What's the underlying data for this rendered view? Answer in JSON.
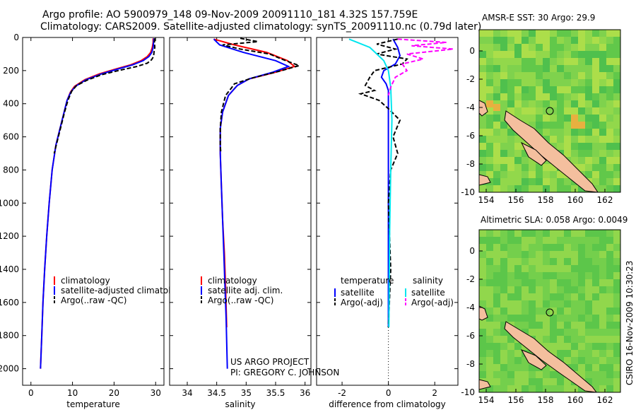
{
  "header": {
    "line1": "Argo profile: AO 5900979_148 09-Nov-2009 20091110_181 4.32S 157.759E",
    "line2": "Climatology: CARS2009. Satellite-adjusted climatology: synTS_20091110.nc (0.79d later)"
  },
  "side_text": "CSIRO 16-Nov-2009 10:30:23",
  "project_text": {
    "line1": "US ARGO PROJECT",
    "line2": "PI: GREGORY C. JOHNSON"
  },
  "colors": {
    "climatology": "#ff0000",
    "satellite": "#0000ff",
    "argo": "#000000",
    "sal_satellite": "#00e5ee",
    "sal_argo": "#ff00ff",
    "land": "#f4bf9e"
  },
  "chart_data": [
    {
      "type": "line",
      "xlabel": "temperature",
      "xlim": [
        -2,
        32
      ],
      "ylim": [
        2100,
        0
      ],
      "xticks": [
        0,
        10,
        20,
        30
      ],
      "yticks": [
        0,
        200,
        400,
        600,
        800,
        1000,
        1200,
        1400,
        1600,
        1800,
        2000
      ],
      "legend": {
        "placement": "bottom-left",
        "entries": [
          "climatology",
          "satellite-adjusted climatology",
          "Argo(..raw -QC)"
        ]
      },
      "series": [
        {
          "name": "climatology",
          "color": "#ff0000",
          "dash": "",
          "points": [
            [
              29.4,
              5
            ],
            [
              29.4,
              30
            ],
            [
              29.2,
              60
            ],
            [
              28.8,
              90
            ],
            [
              28,
              115
            ],
            [
              26.5,
              140
            ],
            [
              24,
              165
            ],
            [
              20.5,
              190
            ],
            [
              16.5,
              220
            ],
            [
              13,
              255
            ],
            [
              10.5,
              295
            ],
            [
              9.5,
              330
            ],
            [
              8.7,
              380
            ],
            [
              8,
              450
            ],
            [
              7,
              550
            ],
            [
              6,
              650
            ],
            [
              5.1,
              800
            ],
            [
              4.4,
              1000
            ],
            [
              3.8,
              1200
            ],
            [
              3.3,
              1400
            ],
            [
              2.9,
              1600
            ],
            [
              2.6,
              1800
            ],
            [
              2.3,
              2000
            ]
          ]
        },
        {
          "name": "satellite-adjusted climatology",
          "color": "#0000ff",
          "dash": "",
          "points": [
            [
              29.6,
              5
            ],
            [
              29.5,
              30
            ],
            [
              29.4,
              60
            ],
            [
              29.1,
              90
            ],
            [
              28.4,
              115
            ],
            [
              27,
              140
            ],
            [
              24.5,
              165
            ],
            [
              21,
              190
            ],
            [
              17,
              220
            ],
            [
              13.3,
              255
            ],
            [
              10.7,
              295
            ],
            [
              9.6,
              330
            ],
            [
              8.7,
              380
            ],
            [
              8,
              450
            ],
            [
              7,
              550
            ],
            [
              6,
              650
            ],
            [
              5.1,
              800
            ],
            [
              4.4,
              1000
            ],
            [
              3.8,
              1200
            ],
            [
              3.3,
              1400
            ],
            [
              2.9,
              1600
            ],
            [
              2.6,
              1800
            ],
            [
              2.3,
              2000
            ]
          ]
        },
        {
          "name": "Argo(..raw -QC)",
          "color": "#000000",
          "dash": "6,3",
          "points": [
            [
              29.8,
              5
            ],
            [
              29.7,
              30
            ],
            [
              29.8,
              60
            ],
            [
              29.6,
              90
            ],
            [
              29.5,
              115
            ],
            [
              29,
              135
            ],
            [
              28,
              155
            ],
            [
              25.5,
              175
            ],
            [
              21,
              200
            ],
            [
              17,
              225
            ],
            [
              13.5,
              258
            ],
            [
              11,
              290
            ],
            [
              9.8,
              325
            ],
            [
              8.9,
              380
            ],
            [
              8.1,
              450
            ],
            [
              7.1,
              550
            ],
            [
              6.1,
              650
            ],
            [
              5.6,
              700
            ]
          ]
        }
      ]
    },
    {
      "type": "line",
      "xlabel": "salinity",
      "xlim": [
        33.7,
        36.1
      ],
      "ylim": [
        2100,
        0
      ],
      "xticks": [
        34,
        34.5,
        35,
        35.5,
        36
      ],
      "legend": {
        "placement": "bottom-left",
        "entries": [
          "climatology",
          "satellite adj. clim.",
          "Argo(..raw -QC)"
        ]
      },
      "series": [
        {
          "name": "climatology",
          "color": "#ff0000",
          "dash": "",
          "points": [
            [
              34.45,
              10
            ],
            [
              34.8,
              45
            ],
            [
              35.35,
              90
            ],
            [
              35.7,
              140
            ],
            [
              35.82,
              175
            ],
            [
              35.5,
              210
            ],
            [
              35.05,
              250
            ],
            [
              34.85,
              290
            ],
            [
              34.7,
              350
            ],
            [
              34.6,
              450
            ],
            [
              34.56,
              550
            ],
            [
              34.56,
              700
            ],
            [
              34.58,
              900
            ],
            [
              34.6,
              1100
            ],
            [
              34.63,
              1300
            ],
            [
              34.65,
              1500
            ],
            [
              34.67,
              1750
            ]
          ]
        },
        {
          "name": "satellite adj. clim.",
          "color": "#0000ff",
          "dash": "",
          "points": [
            [
              34.45,
              10
            ],
            [
              34.55,
              45
            ],
            [
              34.95,
              90
            ],
            [
              35.5,
              140
            ],
            [
              35.72,
              175
            ],
            [
              35.45,
              210
            ],
            [
              35.05,
              250
            ],
            [
              34.85,
              290
            ],
            [
              34.7,
              350
            ],
            [
              34.6,
              450
            ],
            [
              34.56,
              550
            ],
            [
              34.56,
              700
            ],
            [
              34.58,
              900
            ],
            [
              34.6,
              1100
            ],
            [
              34.62,
              1300
            ],
            [
              34.64,
              1500
            ],
            [
              34.66,
              1700
            ],
            [
              34.68,
              2000
            ]
          ]
        },
        {
          "name": "Argo(..raw -QC)",
          "color": "#000000",
          "dash": "6,3",
          "points": [
            [
              34.9,
              5
            ],
            [
              35.2,
              25
            ],
            [
              34.6,
              45
            ],
            [
              34.9,
              70
            ],
            [
              35.4,
              100
            ],
            [
              35.6,
              130
            ],
            [
              35.9,
              170
            ],
            [
              35.55,
              205
            ],
            [
              35.1,
              245
            ],
            [
              34.8,
              280
            ],
            [
              34.75,
              305
            ],
            [
              34.65,
              350
            ],
            [
              34.58,
              450
            ],
            [
              34.56,
              550
            ],
            [
              34.56,
              650
            ],
            [
              34.57,
              700
            ]
          ]
        }
      ]
    },
    {
      "type": "line",
      "xlabel": "difference from climatology",
      "xlim": [
        -3.1,
        3.0
      ],
      "ylim": [
        2100,
        0
      ],
      "xticks": [
        -2,
        0,
        2
      ],
      "legend": {
        "placement": "bottom",
        "headers": [
          "temperature",
          "salinity"
        ],
        "entries": [
          "satellite",
          "Argo(-adj)",
          "satellite",
          "Argo(-adj)"
        ]
      },
      "series": [
        {
          "name": "temperature satellite",
          "color": "#0000ff",
          "dash": "",
          "points": [
            [
              0.2,
              10
            ],
            [
              0.4,
              60
            ],
            [
              0.5,
              110
            ],
            [
              0.3,
              160
            ],
            [
              -0.2,
              200
            ],
            [
              -0.3,
              240
            ],
            [
              -0.1,
              280
            ],
            [
              0,
              320
            ],
            [
              0,
              450
            ],
            [
              0,
              700
            ],
            [
              0,
              1000
            ],
            [
              0,
              1400
            ],
            [
              0,
              1750
            ]
          ]
        },
        {
          "name": "temperature Argo(-adj)",
          "color": "#000000",
          "dash": "6,3",
          "points": [
            [
              0.4,
              10
            ],
            [
              -0.5,
              40
            ],
            [
              0.3,
              70
            ],
            [
              -0.5,
              100
            ],
            [
              0.8,
              130
            ],
            [
              0.6,
              160
            ],
            [
              -0.6,
              200
            ],
            [
              -0.8,
              240
            ],
            [
              -1,
              290
            ],
            [
              -0.6,
              320
            ],
            [
              -1.2,
              340
            ],
            [
              -0.4,
              380
            ],
            [
              0,
              430
            ],
            [
              0.5,
              500
            ],
            [
              0.2,
              600
            ],
            [
              0.4,
              700
            ],
            [
              0.1,
              800
            ],
            [
              0,
              1000
            ],
            [
              0.1,
              1400
            ],
            [
              0,
              1750
            ]
          ]
        },
        {
          "name": "salinity satellite",
          "color": "#00e5ee",
          "dash": "",
          "points": [
            [
              -1.7,
              10
            ],
            [
              -0.8,
              60
            ],
            [
              -0.5,
              100
            ],
            [
              -0.2,
              140
            ],
            [
              0,
              200
            ],
            [
              0.1,
              300
            ],
            [
              0.15,
              500
            ],
            [
              0.1,
              800
            ],
            [
              0.05,
              1200
            ],
            [
              0.02,
              1750
            ]
          ]
        },
        {
          "name": "salinity Argo(-adj)",
          "color": "#ff00ff",
          "dash": "6,3",
          "points": [
            [
              0.4,
              10
            ],
            [
              2.5,
              30
            ],
            [
              1,
              50
            ],
            [
              2.8,
              70
            ],
            [
              0.8,
              100
            ],
            [
              1.5,
              130
            ],
            [
              0.6,
              160
            ],
            [
              0.8,
              200
            ],
            [
              0.3,
              240
            ],
            [
              0.1,
              300
            ],
            [
              0,
              350
            ]
          ]
        }
      ]
    }
  ],
  "maps": {
    "sst": {
      "title": "AMSR-E SST: 30 Argo: 29.9",
      "xticks": [
        "154",
        "156",
        "158",
        "160",
        "162"
      ],
      "yticks": [
        "0",
        "-2",
        "-4",
        "-6",
        "-8",
        "-10"
      ],
      "colors": [
        "#7fd24e",
        "#95d94b",
        "#b4e04a",
        "#5cc74a",
        "#46bd4d",
        "#d8e84e",
        "#e8b040"
      ]
    },
    "sla": {
      "title": "Altimetric SLA: 0.058 Argo: 0.0049",
      "xticks": [
        "154",
        "156",
        "158",
        "160",
        "162"
      ],
      "yticks": [
        "0",
        "-2",
        "-4",
        "-6",
        "-8",
        "-10"
      ],
      "colors": [
        "#5cc64a",
        "#78d04c",
        "#9ad94c",
        "#4fbf4d",
        "#b6df4e"
      ]
    }
  }
}
